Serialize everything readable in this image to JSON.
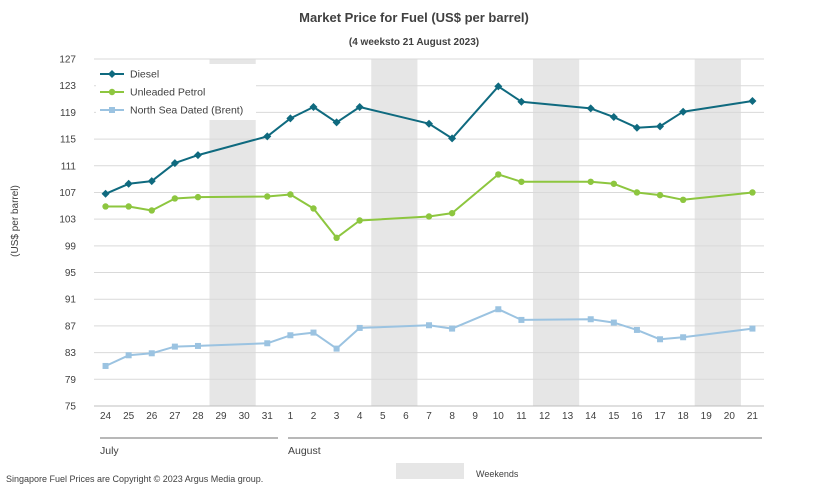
{
  "chart_data": {
    "type": "line",
    "title": "Market Price for Fuel (US$ per barrel)",
    "subtitle": "(4 weeksto 21 August 2023)",
    "ylabel": "(US$ per barrel)",
    "ylim": [
      75,
      127
    ],
    "yticks": [
      75,
      79,
      83,
      87,
      91,
      95,
      99,
      103,
      107,
      111,
      115,
      119,
      123,
      127
    ],
    "categories": [
      "24",
      "25",
      "26",
      "27",
      "28",
      "29",
      "30",
      "31",
      "1",
      "2",
      "3",
      "4",
      "5",
      "6",
      "7",
      "8",
      "9",
      "10",
      "11",
      "12",
      "13",
      "14",
      "15",
      "16",
      "17",
      "18",
      "19",
      "20",
      "21"
    ],
    "months": [
      "July",
      "August"
    ],
    "weekend_label": "Weekends",
    "weekends": [
      [
        "29",
        "30"
      ],
      [
        "5",
        "6"
      ],
      [
        "12",
        "13"
      ],
      [
        "19",
        "20"
      ]
    ],
    "grid": true,
    "legend_position": "top-left",
    "series": [
      {
        "name": "Diesel",
        "color": "#0f6a7f",
        "marker": "diamond",
        "points": [
          {
            "x": "24",
            "y": 106.8
          },
          {
            "x": "25",
            "y": 108.3
          },
          {
            "x": "26",
            "y": 108.7
          },
          {
            "x": "27",
            "y": 111.4
          },
          {
            "x": "28",
            "y": 112.6
          },
          {
            "x": "31",
            "y": 115.4
          },
          {
            "x": "1",
            "y": 118.1
          },
          {
            "x": "2",
            "y": 119.8
          },
          {
            "x": "3",
            "y": 117.5
          },
          {
            "x": "4",
            "y": 119.8
          },
          {
            "x": "7",
            "y": 117.3
          },
          {
            "x": "8",
            "y": 115.1
          },
          {
            "x": "10",
            "y": 122.9
          },
          {
            "x": "11",
            "y": 120.6
          },
          {
            "x": "14",
            "y": 119.6
          },
          {
            "x": "15",
            "y": 118.3
          },
          {
            "x": "16",
            "y": 116.7
          },
          {
            "x": "17",
            "y": 116.9
          },
          {
            "x": "18",
            "y": 119.1
          },
          {
            "x": "21",
            "y": 120.7
          }
        ]
      },
      {
        "name": "Unleaded Petrol",
        "color": "#8dc63f",
        "marker": "circle",
        "points": [
          {
            "x": "24",
            "y": 104.9
          },
          {
            "x": "25",
            "y": 104.9
          },
          {
            "x": "26",
            "y": 104.3
          },
          {
            "x": "27",
            "y": 106.1
          },
          {
            "x": "28",
            "y": 106.3
          },
          {
            "x": "31",
            "y": 106.4
          },
          {
            "x": "1",
            "y": 106.7
          },
          {
            "x": "2",
            "y": 104.6
          },
          {
            "x": "3",
            "y": 100.2
          },
          {
            "x": "4",
            "y": 102.8
          },
          {
            "x": "7",
            "y": 103.4
          },
          {
            "x": "8",
            "y": 103.9
          },
          {
            "x": "10",
            "y": 109.7
          },
          {
            "x": "11",
            "y": 108.6
          },
          {
            "x": "14",
            "y": 108.6
          },
          {
            "x": "15",
            "y": 108.3
          },
          {
            "x": "16",
            "y": 107.0
          },
          {
            "x": "17",
            "y": 106.6
          },
          {
            "x": "18",
            "y": 105.9
          },
          {
            "x": "21",
            "y": 107.0
          }
        ]
      },
      {
        "name": "North Sea Dated (Brent)",
        "color": "#9bc3e1",
        "marker": "square",
        "points": [
          {
            "x": "24",
            "y": 81.0
          },
          {
            "x": "25",
            "y": 82.6
          },
          {
            "x": "26",
            "y": 82.9
          },
          {
            "x": "27",
            "y": 83.9
          },
          {
            "x": "28",
            "y": 84.0
          },
          {
            "x": "31",
            "y": 84.4
          },
          {
            "x": "1",
            "y": 85.6
          },
          {
            "x": "2",
            "y": 86.0
          },
          {
            "x": "3",
            "y": 83.6
          },
          {
            "x": "4",
            "y": 86.7
          },
          {
            "x": "7",
            "y": 87.1
          },
          {
            "x": "8",
            "y": 86.6
          },
          {
            "x": "10",
            "y": 89.5
          },
          {
            "x": "11",
            "y": 87.9
          },
          {
            "x": "14",
            "y": 88.0
          },
          {
            "x": "15",
            "y": 87.5
          },
          {
            "x": "16",
            "y": 86.4
          },
          {
            "x": "17",
            "y": 85.0
          },
          {
            "x": "18",
            "y": 85.3
          },
          {
            "x": "21",
            "y": 86.6
          }
        ]
      }
    ]
  },
  "footer": {
    "copyright": "Singapore Fuel Prices are Copyright © 2023 Argus Media group."
  }
}
